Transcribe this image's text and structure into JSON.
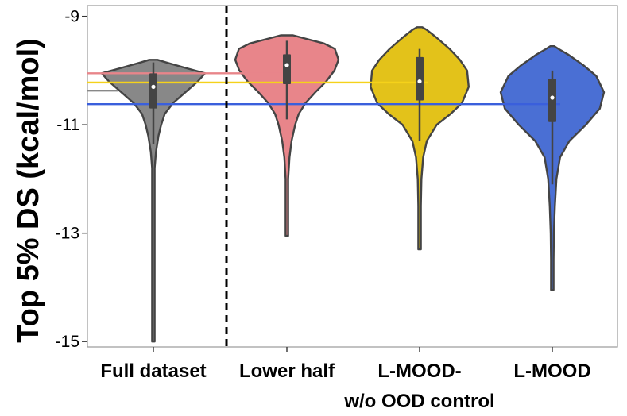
{
  "chart_data": {
    "type": "violin",
    "ylabel": "Top 5% DS (kcal/mol)",
    "xlabel": "",
    "ylim": [
      -15.1,
      -8.8
    ],
    "y_ticks": [
      -9,
      -11,
      -13,
      -15
    ],
    "grid": false,
    "legend": "none",
    "categories": [
      {
        "lines": [
          "Full dataset"
        ]
      },
      {
        "lines": [
          "Lower half"
        ]
      },
      {
        "lines": [
          "L-MOOD-",
          "w/o OOD control"
        ]
      },
      {
        "lines": [
          "L-MOOD"
        ]
      }
    ],
    "colors": [
      "#888888",
      "#e8858a",
      "#e3c21a",
      "#4a6fd4"
    ],
    "series": [
      {
        "min": -15.0,
        "max": -9.8,
        "median": -10.3,
        "q1": -10.7,
        "q3": -10.05,
        "whisker_low": -11.35,
        "whisker_high": -9.85,
        "mean": -10.37,
        "profile": [
          [
            -15.0,
            0.006
          ],
          [
            -14.0,
            0.008
          ],
          [
            -13.0,
            0.01
          ],
          [
            -12.0,
            0.016
          ],
          [
            -11.8,
            0.02
          ],
          [
            -11.5,
            0.05
          ],
          [
            -11.2,
            0.1
          ],
          [
            -11.0,
            0.15
          ],
          [
            -10.8,
            0.22
          ],
          [
            -10.6,
            0.38
          ],
          [
            -10.4,
            0.62
          ],
          [
            -10.2,
            0.86
          ],
          [
            -10.05,
            1.0
          ],
          [
            -9.95,
            0.62
          ],
          [
            -9.85,
            0.25
          ],
          [
            -9.8,
            0.08
          ]
        ]
      },
      {
        "min": -13.05,
        "max": -9.35,
        "median": -9.9,
        "q1": -10.25,
        "q3": -9.7,
        "whisker_low": -10.9,
        "whisker_high": -9.45,
        "mean": -10.03,
        "profile": [
          [
            -13.05,
            0.01
          ],
          [
            -12.5,
            0.02
          ],
          [
            -12.0,
            0.025
          ],
          [
            -11.6,
            0.05
          ],
          [
            -11.3,
            0.09
          ],
          [
            -11.0,
            0.16
          ],
          [
            -10.8,
            0.23
          ],
          [
            -10.6,
            0.36
          ],
          [
            -10.4,
            0.55
          ],
          [
            -10.2,
            0.76
          ],
          [
            -10.0,
            0.92
          ],
          [
            -9.8,
            1.0
          ],
          [
            -9.6,
            0.93
          ],
          [
            -9.5,
            0.72
          ],
          [
            -9.4,
            0.32
          ],
          [
            -9.35,
            0.12
          ]
        ]
      },
      {
        "min": -13.3,
        "max": -9.2,
        "median": -10.2,
        "q1": -10.55,
        "q3": -9.75,
        "whisker_low": -11.3,
        "whisker_high": -9.6,
        "mean": -10.23,
        "profile": [
          [
            -13.3,
            0.01
          ],
          [
            -12.5,
            0.02
          ],
          [
            -12.0,
            0.035
          ],
          [
            -11.6,
            0.07
          ],
          [
            -11.3,
            0.14
          ],
          [
            -11.0,
            0.33
          ],
          [
            -10.8,
            0.6
          ],
          [
            -10.6,
            0.82
          ],
          [
            -10.3,
            0.95
          ],
          [
            -10.0,
            0.92
          ],
          [
            -9.8,
            0.78
          ],
          [
            -9.6,
            0.58
          ],
          [
            -9.4,
            0.34
          ],
          [
            -9.25,
            0.14
          ],
          [
            -9.2,
            0.05
          ]
        ]
      },
      {
        "min": -14.05,
        "max": -9.55,
        "median": -10.5,
        "q1": -10.95,
        "q3": -10.15,
        "whisker_low": -12.1,
        "whisker_high": -10.0,
        "mean": -10.62,
        "profile": [
          [
            -14.05,
            0.01
          ],
          [
            -13.5,
            0.02
          ],
          [
            -13.0,
            0.03
          ],
          [
            -12.5,
            0.05
          ],
          [
            -12.0,
            0.08
          ],
          [
            -11.6,
            0.15
          ],
          [
            -11.3,
            0.33
          ],
          [
            -11.0,
            0.65
          ],
          [
            -10.7,
            0.92
          ],
          [
            -10.4,
            1.0
          ],
          [
            -10.1,
            0.85
          ],
          [
            -9.9,
            0.6
          ],
          [
            -9.7,
            0.3
          ],
          [
            -9.6,
            0.12
          ],
          [
            -9.55,
            0.04
          ]
        ]
      }
    ],
    "reference_lines": [
      {
        "y": -10.05,
        "color": "#e8858a",
        "from_category": 0,
        "to_category": 1
      },
      {
        "y": -10.22,
        "color": "#f5d21a",
        "from_category": 0,
        "to_category": 2
      },
      {
        "y": -10.37,
        "color": "#888888",
        "from_category": 0,
        "to_category": 0
      },
      {
        "y": -10.62,
        "color": "#3a5fdc",
        "from_category": 0,
        "to_category": 3
      }
    ],
    "separator_after_category": 0
  }
}
